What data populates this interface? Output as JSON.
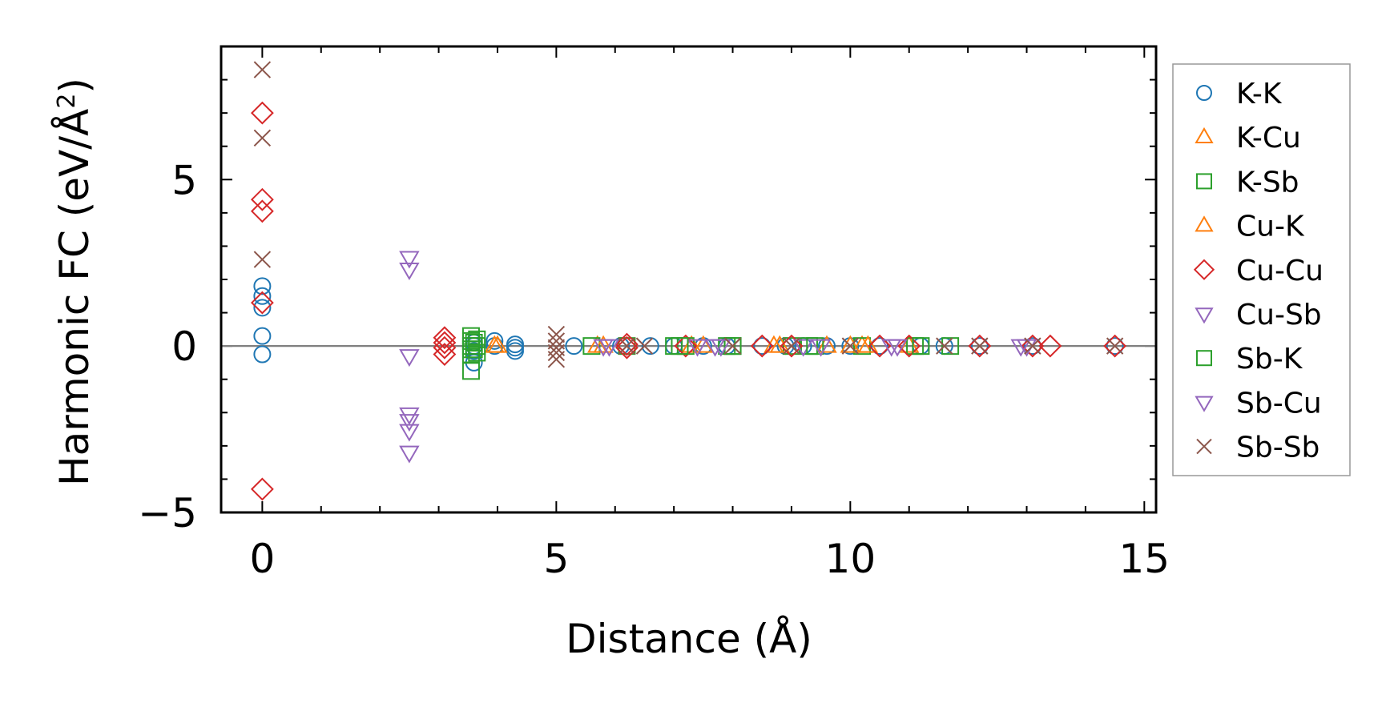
{
  "chart_data": {
    "type": "scatter",
    "xlabel": "Distance (Å)",
    "ylabel": "Harmonic FC (eV/Å²)",
    "ylabel_parts": {
      "prefix": "Harmonic FC (eV/Å",
      "superscript": "2",
      "suffix": ")"
    },
    "xlim": [
      -0.7,
      15.2
    ],
    "ylim": [
      -5.0,
      9.0
    ],
    "xticks": [
      0,
      5,
      10,
      15
    ],
    "xtick_labels": [
      "0",
      "5",
      "10",
      "15"
    ],
    "yticks": [
      -5,
      0,
      5
    ],
    "ytick_labels": [
      "−5",
      "0",
      "5"
    ],
    "x_minor_step": 1,
    "y_minor_step": 1,
    "zero_line": true,
    "grid": false,
    "legend_position": "outside right",
    "series": [
      {
        "name": "K-K",
        "marker": "circle",
        "color": "#1f77b4",
        "points": [
          [
            0,
            1.8
          ],
          [
            0,
            1.5
          ],
          [
            0,
            1.15
          ],
          [
            0,
            0.3
          ],
          [
            0,
            -0.25
          ],
          [
            3.6,
            0.1
          ],
          [
            3.6,
            0.0
          ],
          [
            3.6,
            -0.15
          ],
          [
            3.6,
            -0.5
          ],
          [
            3.95,
            0.15
          ],
          [
            3.95,
            0.0
          ],
          [
            4.3,
            0.05
          ],
          [
            4.3,
            -0.05
          ],
          [
            4.3,
            -0.15
          ],
          [
            5.3,
            0.0
          ],
          [
            6.1,
            0.0
          ],
          [
            6.6,
            0.0
          ],
          [
            7.0,
            0.0
          ],
          [
            7.5,
            0.0
          ],
          [
            7.9,
            0.0
          ],
          [
            8.5,
            0.0
          ],
          [
            8.9,
            0.0
          ],
          [
            9.2,
            0.0
          ],
          [
            9.6,
            0.0
          ],
          [
            10.0,
            0.0
          ],
          [
            10.5,
            0.0
          ],
          [
            11.2,
            0.0
          ],
          [
            11.6,
            0.0
          ],
          [
            12.2,
            0.0
          ],
          [
            13.1,
            0.0
          ],
          [
            14.5,
            0.0
          ]
        ]
      },
      {
        "name": "K-Cu",
        "marker": "triangle-up",
        "color": "#ff7f0e",
        "points": [
          [
            3.95,
            0.0
          ],
          [
            5.7,
            0.0
          ],
          [
            7.3,
            0.0
          ],
          [
            8.7,
            0.0
          ],
          [
            9.6,
            0.0
          ],
          [
            10.2,
            0.0
          ],
          [
            11.0,
            0.0
          ]
        ]
      },
      {
        "name": "K-Sb",
        "marker": "square",
        "color": "#2ca02c",
        "points": [
          [
            3.55,
            0.3
          ],
          [
            3.55,
            0.15
          ],
          [
            3.55,
            0.0
          ],
          [
            3.55,
            -0.1
          ],
          [
            3.55,
            -0.25
          ],
          [
            3.55,
            -0.75
          ],
          [
            3.65,
            0.2
          ],
          [
            3.65,
            0.0
          ],
          [
            3.65,
            -0.2
          ],
          [
            5.6,
            0.0
          ],
          [
            6.2,
            0.0
          ],
          [
            7.0,
            0.0
          ],
          [
            7.2,
            0.0
          ],
          [
            7.9,
            0.0
          ],
          [
            8.0,
            0.0
          ],
          [
            9.0,
            0.0
          ],
          [
            9.3,
            0.0
          ],
          [
            10.2,
            0.0
          ],
          [
            11.1,
            0.0
          ],
          [
            11.7,
            0.0
          ]
        ]
      },
      {
        "name": "Cu-K",
        "marker": "triangle-up",
        "color": "#ff7f0e",
        "points": [
          [
            4.0,
            0.0
          ],
          [
            5.8,
            0.0
          ],
          [
            7.5,
            0.0
          ],
          [
            8.8,
            0.0
          ],
          [
            10.0,
            0.0
          ],
          [
            10.3,
            0.0
          ]
        ]
      },
      {
        "name": "Cu-Cu",
        "marker": "diamond",
        "color": "#d62728",
        "points": [
          [
            0,
            7.0
          ],
          [
            0,
            4.4
          ],
          [
            0,
            4.05
          ],
          [
            0,
            1.3
          ],
          [
            0,
            -4.3
          ],
          [
            3.1,
            0.25
          ],
          [
            3.1,
            0.1
          ],
          [
            3.1,
            -0.05
          ],
          [
            3.1,
            -0.25
          ],
          [
            6.2,
            0.05
          ],
          [
            6.2,
            -0.05
          ],
          [
            7.2,
            0.0
          ],
          [
            8.5,
            0.0
          ],
          [
            9.0,
            0.0
          ],
          [
            10.5,
            0.0
          ],
          [
            11.0,
            0.0
          ],
          [
            12.2,
            0.0
          ],
          [
            13.1,
            0.0
          ],
          [
            13.4,
            0.0
          ],
          [
            14.5,
            0.0
          ]
        ]
      },
      {
        "name": "Cu-Sb",
        "marker": "triangle-down",
        "color": "#9467bd",
        "points": [
          [
            2.5,
            2.65
          ],
          [
            2.5,
            2.3
          ],
          [
            2.5,
            -0.3
          ],
          [
            2.5,
            -2.05
          ],
          [
            2.5,
            -2.25
          ],
          [
            2.5,
            -2.55
          ],
          [
            2.5,
            -3.2
          ],
          [
            5.8,
            0.0
          ],
          [
            7.4,
            0.0
          ],
          [
            7.7,
            0.0
          ],
          [
            9.2,
            0.0
          ],
          [
            10.7,
            0.0
          ],
          [
            12.9,
            0.0
          ]
        ]
      },
      {
        "name": "Sb-K",
        "marker": "square",
        "color": "#2ca02c",
        "points": [
          [
            3.6,
            0.1
          ],
          [
            3.6,
            -0.1
          ],
          [
            7.1,
            0.0
          ],
          [
            8.0,
            0.0
          ],
          [
            9.4,
            0.0
          ],
          [
            11.2,
            0.0
          ]
        ]
      },
      {
        "name": "Sb-Cu",
        "marker": "triangle-down",
        "color": "#9467bd",
        "points": [
          [
            5.9,
            0.0
          ],
          [
            7.8,
            0.0
          ],
          [
            9.5,
            0.0
          ],
          [
            10.8,
            0.0
          ],
          [
            13.0,
            0.0
          ]
        ]
      },
      {
        "name": "Sb-Sb",
        "marker": "x",
        "color": "#8c564b",
        "points": [
          [
            0,
            8.3
          ],
          [
            0,
            6.25
          ],
          [
            0,
            2.6
          ],
          [
            5.0,
            0.35
          ],
          [
            5.0,
            0.15
          ],
          [
            5.0,
            -0.05
          ],
          [
            5.0,
            -0.2
          ],
          [
            5.0,
            -0.4
          ],
          [
            6.2,
            0.0
          ],
          [
            6.5,
            0.0
          ],
          [
            8.0,
            0.0
          ],
          [
            9.0,
            0.0
          ],
          [
            10.0,
            0.0
          ],
          [
            11.6,
            0.0
          ],
          [
            12.2,
            0.0
          ],
          [
            13.1,
            0.0
          ],
          [
            14.5,
            0.0
          ]
        ]
      }
    ]
  },
  "colors": {
    "K-K": "#1f77b4",
    "K-Cu": "#ff7f0e",
    "K-Sb": "#2ca02c",
    "Cu-Cu": "#d62728",
    "Cu-Sb": "#9467bd",
    "Sb-Sb": "#8c564b",
    "zero_line": "#808080",
    "legend_border": "#999999"
  }
}
